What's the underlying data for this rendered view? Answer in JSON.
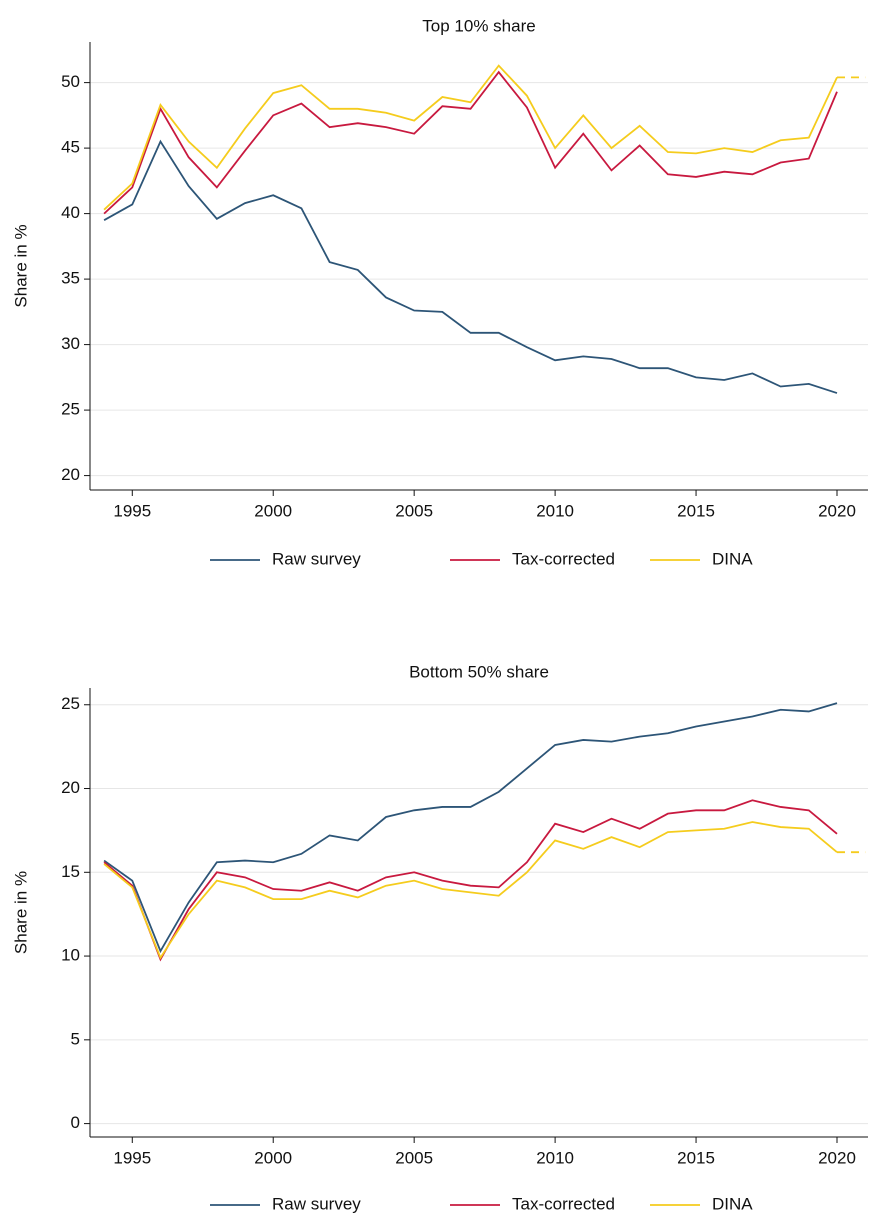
{
  "chart_data": [
    {
      "type": "line",
      "title": "Top 10% share",
      "y_label": "Share in %",
      "x": [
        1994,
        1995,
        1996,
        1997,
        1998,
        1999,
        2000,
        2001,
        2002,
        2003,
        2004,
        2005,
        2006,
        2007,
        2008,
        2009,
        2010,
        2011,
        2012,
        2013,
        2014,
        2015,
        2016,
        2017,
        2018,
        2019,
        2020,
        2021
      ],
      "xlim": [
        1993.5,
        2021.1
      ],
      "xticks": [
        1995,
        2000,
        2005,
        2010,
        2015,
        2020
      ],
      "ylim": [
        18.9,
        53.1
      ],
      "yticks": [
        20,
        25,
        30,
        35,
        40,
        45,
        50
      ],
      "grid": true,
      "legend": "bottom",
      "series": [
        {
          "name": "Raw survey",
          "color": "#2d5577",
          "values": [
            39.5,
            40.7,
            45.5,
            42.1,
            39.6,
            40.8,
            41.4,
            40.4,
            36.3,
            35.7,
            33.6,
            32.6,
            32.5,
            30.9,
            30.9,
            29.8,
            28.8,
            29.1,
            28.9,
            28.2,
            28.2,
            27.5,
            27.3,
            27.8,
            26.8,
            27.0,
            26.3,
            null
          ]
        },
        {
          "name": "Tax-corrected",
          "color": "#c8193f",
          "values": [
            40.0,
            42.0,
            48.0,
            44.3,
            42.0,
            44.8,
            47.5,
            48.4,
            46.6,
            46.9,
            46.6,
            46.1,
            48.2,
            48.0,
            50.8,
            48.1,
            43.5,
            46.1,
            43.3,
            45.2,
            43.0,
            42.8,
            43.2,
            43.0,
            43.9,
            44.2,
            49.3,
            null
          ]
        },
        {
          "name": "DINA",
          "color": "#f5cc1d",
          "dashed_tail": true,
          "values": [
            40.3,
            42.3,
            48.3,
            45.5,
            43.5,
            46.5,
            49.2,
            49.8,
            48.0,
            48.0,
            47.7,
            47.1,
            48.9,
            48.5,
            51.3,
            49.0,
            45.0,
            47.5,
            45.0,
            46.7,
            44.7,
            44.6,
            45.0,
            44.7,
            45.6,
            45.8,
            50.4,
            50.4
          ]
        }
      ]
    },
    {
      "type": "line",
      "title": "Bottom 50% share",
      "y_label": "Share in %",
      "x": [
        1994,
        1995,
        1996,
        1997,
        1998,
        1999,
        2000,
        2001,
        2002,
        2003,
        2004,
        2005,
        2006,
        2007,
        2008,
        2009,
        2010,
        2011,
        2012,
        2013,
        2014,
        2015,
        2016,
        2017,
        2018,
        2019,
        2020,
        2021
      ],
      "xlim": [
        1993.5,
        2021.1
      ],
      "xticks": [
        1995,
        2000,
        2005,
        2010,
        2015,
        2020
      ],
      "ylim": [
        -0.8,
        26
      ],
      "yticks": [
        0,
        5,
        10,
        15,
        20,
        25
      ],
      "grid": true,
      "legend": "bottom",
      "series": [
        {
          "name": "Raw survey",
          "color": "#2d5577",
          "values": [
            15.7,
            14.5,
            10.3,
            13.2,
            15.6,
            15.7,
            15.6,
            16.1,
            17.2,
            16.9,
            18.3,
            18.7,
            18.9,
            18.9,
            19.8,
            21.2,
            22.6,
            22.9,
            22.8,
            23.1,
            23.3,
            23.7,
            24.0,
            24.3,
            24.7,
            24.6,
            25.1,
            null
          ]
        },
        {
          "name": "Tax-corrected",
          "color": "#c8193f",
          "values": [
            15.6,
            14.2,
            9.8,
            12.8,
            15.0,
            14.7,
            14.0,
            13.9,
            14.4,
            13.9,
            14.7,
            15.0,
            14.5,
            14.2,
            14.1,
            15.6,
            17.9,
            17.4,
            18.2,
            17.6,
            18.5,
            18.7,
            18.7,
            19.3,
            18.9,
            18.7,
            17.3,
            null
          ]
        },
        {
          "name": "DINA",
          "color": "#f5cc1d",
          "dashed_tail": true,
          "values": [
            15.5,
            14.1,
            9.9,
            12.5,
            14.5,
            14.1,
            13.4,
            13.4,
            13.9,
            13.5,
            14.2,
            14.5,
            14.0,
            13.8,
            13.6,
            15.0,
            16.9,
            16.4,
            17.1,
            16.5,
            17.4,
            17.5,
            17.6,
            18.0,
            17.7,
            17.6,
            16.2,
            16.2
          ]
        }
      ]
    }
  ]
}
